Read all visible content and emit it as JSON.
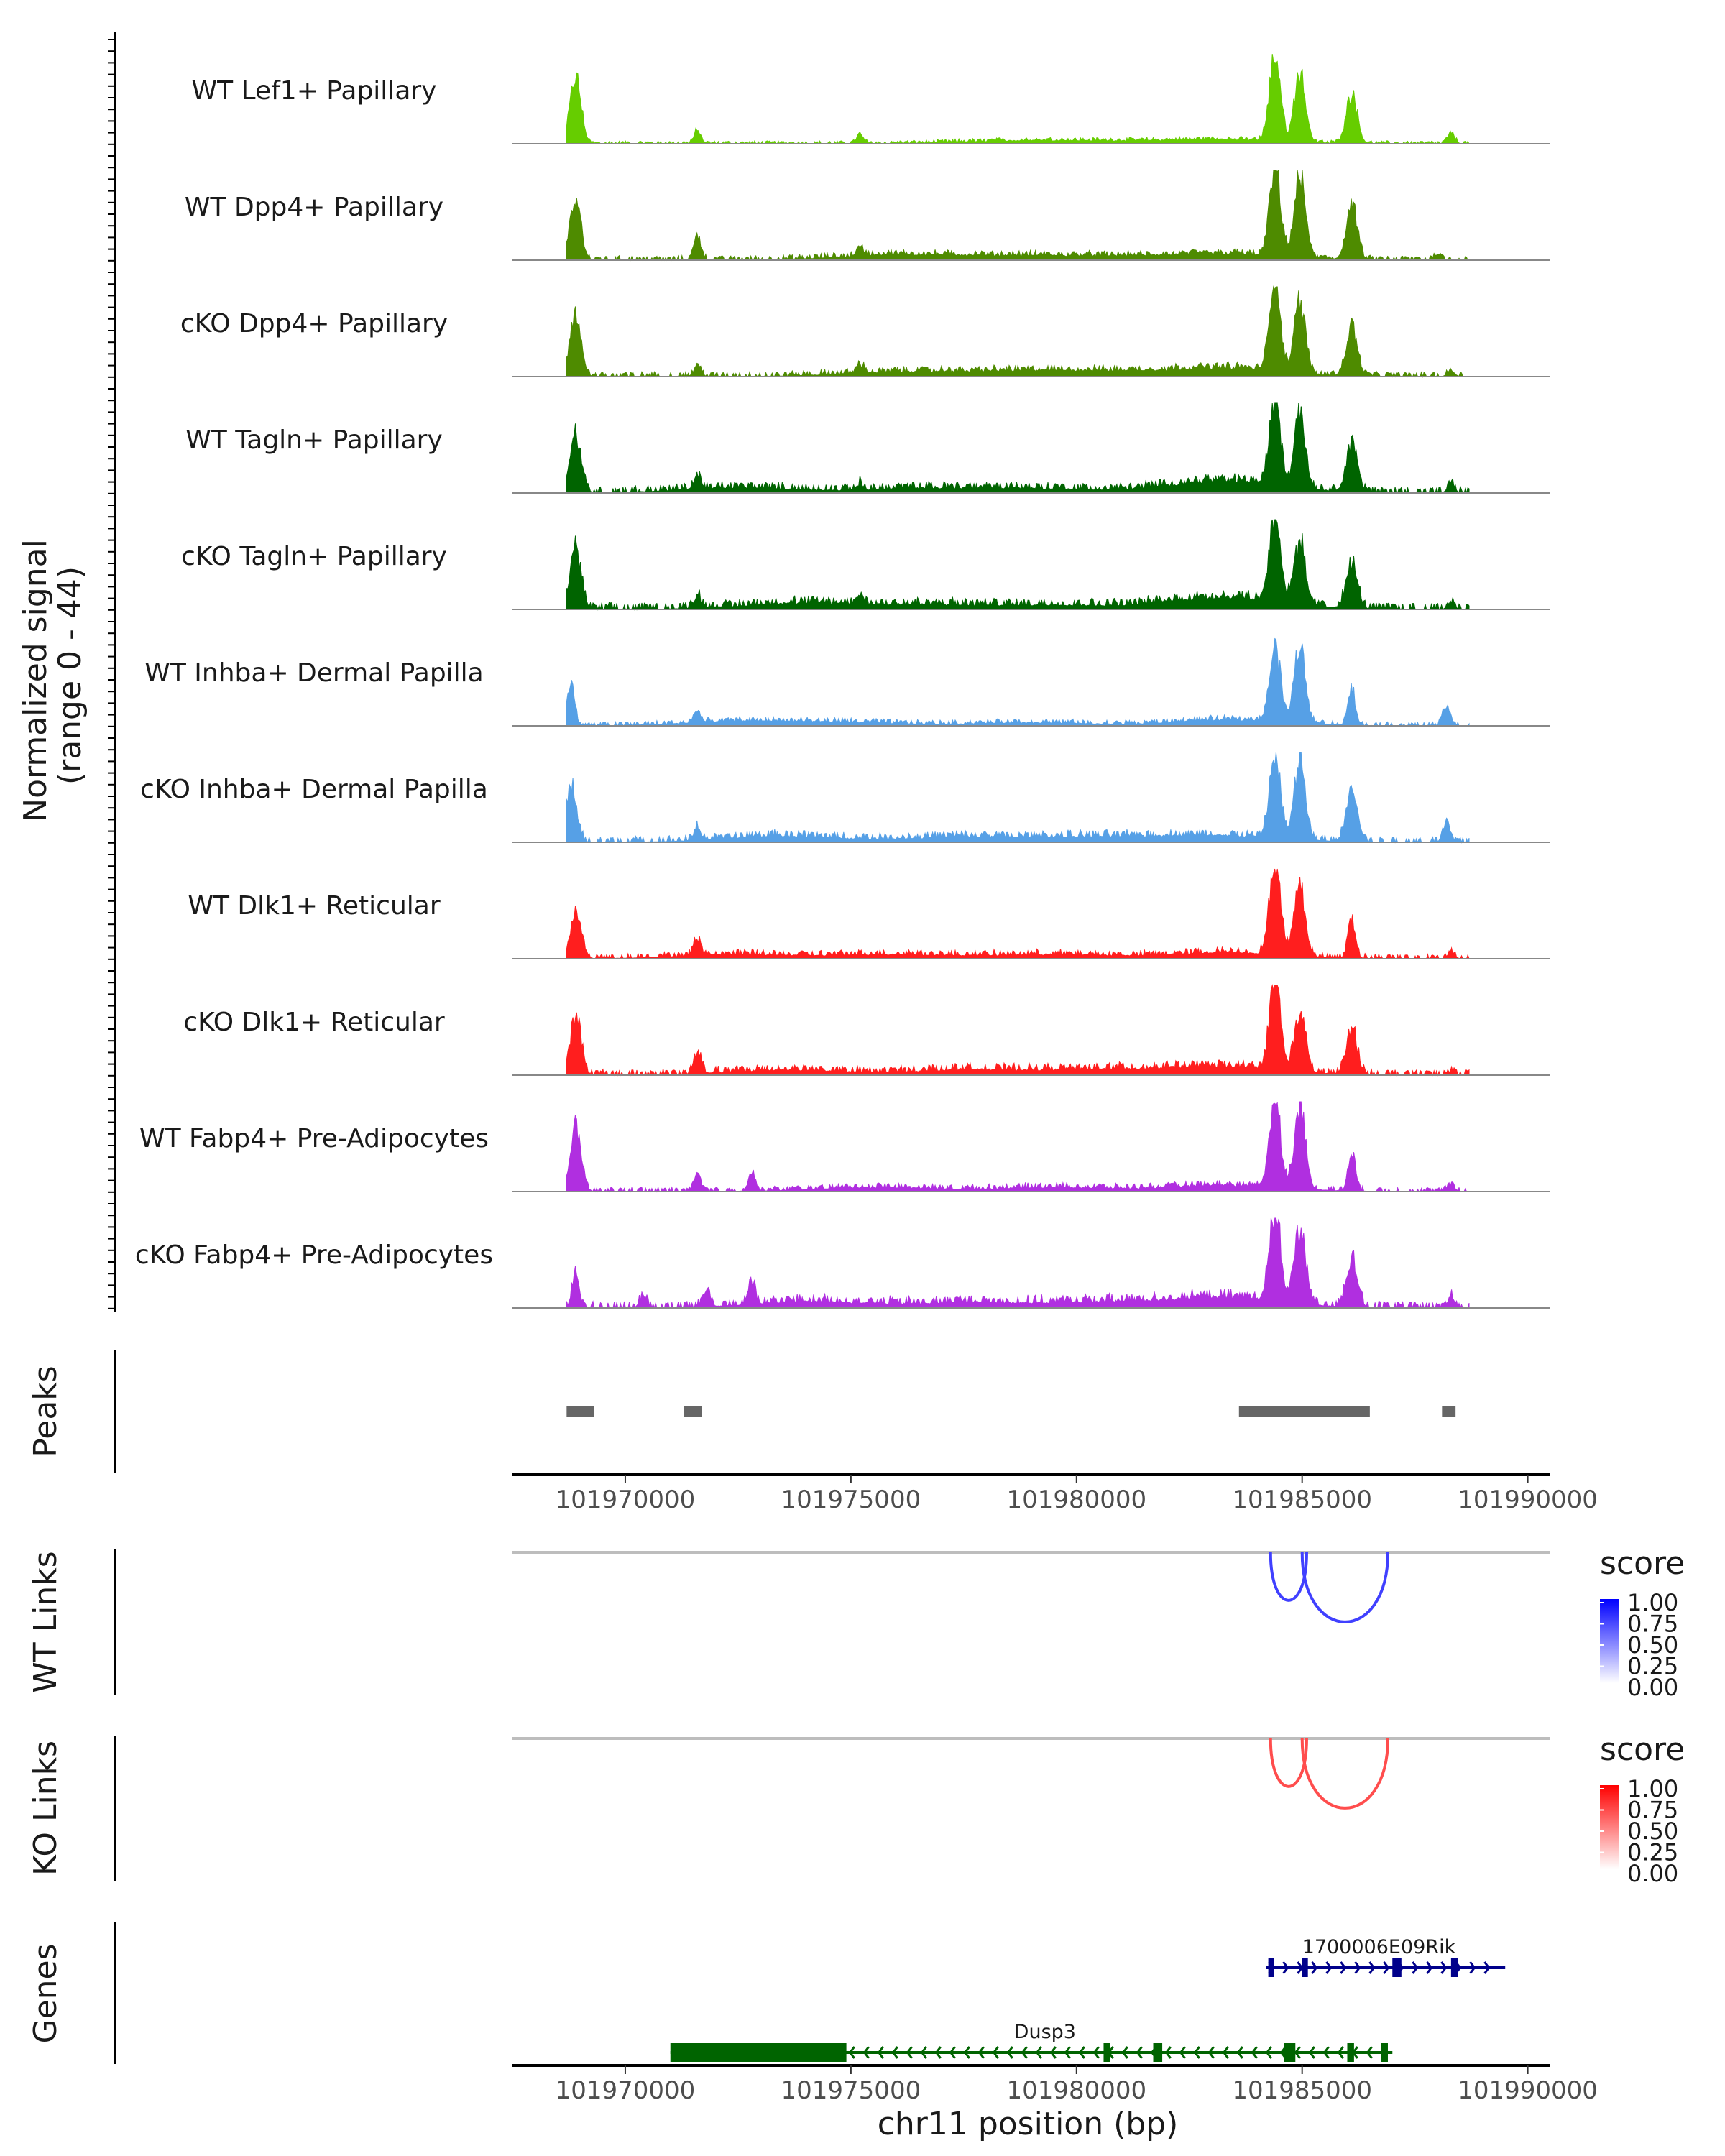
{
  "chart_data": {
    "type": "area",
    "title": "",
    "region": {
      "chrom": "chr11",
      "start": 101967500,
      "end": 101990500
    },
    "xlabel": "chr11 position (bp)",
    "x_ticks": [
      101970000,
      101975000,
      101980000,
      101985000,
      101990000
    ],
    "x_tick_labels": [
      "101970000",
      "101975000",
      "101980000",
      "101985000",
      "101990000"
    ],
    "coverage": {
      "ylabel": "Normalized signal\n(range 0 - 44)",
      "ylabel_line1": "Normalized signal",
      "ylabel_line2": "(range 0 - 44)",
      "ylim": [
        0,
        44
      ],
      "tracks": [
        {
          "name": "WT Lef1+ Papillary",
          "color": "#66CD00",
          "peaks": [
            [
              101968900,
              32
            ],
            [
              101971600,
              6
            ],
            [
              101975200,
              4
            ],
            [
              101984400,
              42
            ],
            [
              101984950,
              34
            ],
            [
              101986100,
              24
            ],
            [
              101988300,
              5
            ]
          ],
          "noise": 0.6,
          "bg": [
            [
              101978500,
              1.2
            ],
            [
              101980500,
              1.0
            ],
            [
              101983300,
              2.0
            ]
          ]
        },
        {
          "name": "WT Dpp4+ Papillary",
          "color": "#4E8B00",
          "peaks": [
            [
              101968900,
              28
            ],
            [
              101971600,
              12
            ],
            [
              101975200,
              4
            ],
            [
              101984400,
              42
            ],
            [
              101984950,
              40
            ],
            [
              101986100,
              26
            ],
            [
              101988000,
              3
            ]
          ],
          "noise": 0.9,
          "bg": [
            [
              101976000,
              2.5
            ],
            [
              101978500,
              1.5
            ],
            [
              101980500,
              1.5
            ],
            [
              101983300,
              3.0
            ]
          ]
        },
        {
          "name": "cKO Dpp4+ Papillary",
          "color": "#4E8B00",
          "peaks": [
            [
              101968900,
              28
            ],
            [
              101971600,
              5
            ],
            [
              101975200,
              4
            ],
            [
              101984400,
              42
            ],
            [
              101984950,
              34
            ],
            [
              101986100,
              24
            ],
            [
              101988300,
              3
            ]
          ],
          "noise": 1.0,
          "bg": [
            [
              101976000,
              2.0
            ],
            [
              101978500,
              2.0
            ],
            [
              101980500,
              2.0
            ],
            [
              101983300,
              4.0
            ]
          ]
        },
        {
          "name": "WT Tagln+ Papillary",
          "color": "#006400",
          "peaks": [
            [
              101968900,
              28
            ],
            [
              101971600,
              6
            ],
            [
              101975200,
              3
            ],
            [
              101984400,
              42
            ],
            [
              101984950,
              36
            ],
            [
              101986100,
              24
            ],
            [
              101988300,
              4
            ]
          ],
          "noise": 1.3,
          "bg": [
            [
              101972500,
              2.5
            ],
            [
              101976500,
              2.0
            ],
            [
              101979000,
              2.0
            ],
            [
              101983300,
              6.0
            ]
          ]
        },
        {
          "name": "cKO Tagln+ Papillary",
          "color": "#006400",
          "peaks": [
            [
              101968900,
              30
            ],
            [
              101971600,
              6
            ],
            [
              101975200,
              4
            ],
            [
              101984400,
              44
            ],
            [
              101984950,
              30
            ],
            [
              101986100,
              22
            ],
            [
              101988300,
              3
            ]
          ],
          "noise": 1.4,
          "bg": [
            [
              101973800,
              2.8
            ],
            [
              101976500,
              2.0
            ],
            [
              101979500,
              2.0
            ],
            [
              101983300,
              6.0
            ]
          ]
        },
        {
          "name": "WT Inhba+ Dermal Papilla",
          "color": "#56A0E6",
          "peaks": [
            [
              101968800,
              20
            ],
            [
              101971600,
              5
            ],
            [
              101984400,
              36
            ],
            [
              101984950,
              38
            ],
            [
              101986100,
              18
            ],
            [
              101988200,
              10
            ]
          ],
          "noise": 0.8,
          "bg": [
            [
              101972500,
              2.0
            ],
            [
              101975000,
              1.5
            ],
            [
              101979000,
              1.5
            ],
            [
              101983500,
              3.0
            ]
          ]
        },
        {
          "name": "cKO Inhba+ Dermal Papilla",
          "color": "#56A0E6",
          "peaks": [
            [
              101968800,
              26
            ],
            [
              101971600,
              6
            ],
            [
              101984400,
              40
            ],
            [
              101984950,
              38
            ],
            [
              101986100,
              26
            ],
            [
              101988200,
              10
            ]
          ],
          "noise": 1.2,
          "bg": [
            [
              101973500,
              3.0
            ],
            [
              101977500,
              2.5
            ],
            [
              101980500,
              2.5
            ],
            [
              101983300,
              3.0
            ]
          ]
        },
        {
          "name": "WT Dlk1+ Reticular",
          "color": "#FF1E1E",
          "peaks": [
            [
              101968900,
              22
            ],
            [
              101971600,
              8
            ],
            [
              101984400,
              44
            ],
            [
              101984950,
              34
            ],
            [
              101986100,
              20
            ],
            [
              101988300,
              3
            ]
          ],
          "noise": 1.0,
          "bg": [
            [
              101972500,
              2.0
            ],
            [
              101976000,
              2.0
            ],
            [
              101979500,
              2.0
            ],
            [
              101983300,
              3.0
            ]
          ]
        },
        {
          "name": "cKO Dlk1+ Reticular",
          "color": "#FF1E1E",
          "peaks": [
            [
              101968900,
              28
            ],
            [
              101971600,
              10
            ],
            [
              101984400,
              44
            ],
            [
              101984950,
              28
            ],
            [
              101986100,
              22
            ],
            [
              101988300,
              2
            ]
          ],
          "noise": 1.2,
          "bg": [
            [
              101973500,
              2.5
            ],
            [
              101977500,
              2.5
            ],
            [
              101980500,
              2.5
            ],
            [
              101983300,
              4.0
            ]
          ]
        },
        {
          "name": "WT Fabp4+ Pre-Adipocytes",
          "color": "#B02FE0",
          "peaks": [
            [
              101968900,
              30
            ],
            [
              101971600,
              8
            ],
            [
              101972800,
              8
            ],
            [
              101984400,
              44
            ],
            [
              101984950,
              40
            ],
            [
              101986100,
              20
            ],
            [
              101988300,
              3
            ]
          ],
          "noise": 0.9,
          "bg": [
            [
              101975500,
              2.0
            ],
            [
              101979500,
              2.0
            ],
            [
              101983300,
              3.0
            ]
          ]
        },
        {
          "name": "cKO Fabp4+ Pre-Adipocytes",
          "color": "#B02FE0",
          "peaks": [
            [
              101968900,
              16
            ],
            [
              101970400,
              6
            ],
            [
              101971800,
              8
            ],
            [
              101972800,
              10
            ],
            [
              101984400,
              44
            ],
            [
              101984950,
              36
            ],
            [
              101986100,
              24
            ],
            [
              101988300,
              5
            ]
          ],
          "noise": 1.4,
          "bg": [
            [
              101974000,
              3.0
            ],
            [
              101977500,
              2.5
            ],
            [
              101980500,
              2.5
            ],
            [
              101983300,
              5.0
            ]
          ]
        }
      ]
    },
    "peaks": {
      "label": "Peaks",
      "color": "#666666",
      "intervals": [
        [
          101968700,
          101969300
        ],
        [
          101971300,
          101971700
        ],
        [
          101983600,
          101986500
        ],
        [
          101988100,
          101988400
        ]
      ]
    },
    "links": [
      {
        "label": "WT Links",
        "legend_title": "score",
        "legend_ticks": [
          "1.00",
          "0.75",
          "0.50",
          "0.25",
          "0.00"
        ],
        "color_low": "#FFFFFF",
        "color_high": "#0000FF",
        "arcs": [
          {
            "start": 101984300,
            "end": 101985100,
            "score": 0.75
          },
          {
            "start": 101985000,
            "end": 101986900,
            "score": 0.75
          }
        ]
      },
      {
        "label": "KO Links",
        "legend_title": "score",
        "legend_ticks": [
          "1.00",
          "0.75",
          "0.50",
          "0.25",
          "0.00"
        ],
        "color_low": "#FFFFFF",
        "color_high": "#FF0000",
        "arcs": [
          {
            "start": 101984300,
            "end": 101985100,
            "score": 0.7
          },
          {
            "start": 101985000,
            "end": 101986900,
            "score": 0.7
          }
        ]
      }
    ],
    "genes": {
      "label": "Genes",
      "items": [
        {
          "name": "1700006E09Rik",
          "strand": "+",
          "color": "#00008B",
          "start": 101984200,
          "end": 101989500,
          "exons": [
            [
              101984250,
              101984350
            ],
            [
              101985000,
              101985100
            ],
            [
              101987000,
              101987200
            ],
            [
              101988300,
              101988450
            ]
          ]
        },
        {
          "name": "Dusp3",
          "strand": "-",
          "color": "#006400",
          "start": 101971000,
          "end": 101987000,
          "exons": [
            [
              101971000,
              101974900
            ],
            [
              101980600,
              101980750
            ],
            [
              101981700,
              101981900
            ],
            [
              101984600,
              101984850
            ],
            [
              101986000,
              101986150
            ],
            [
              101986750,
              101986900
            ]
          ]
        }
      ]
    }
  }
}
